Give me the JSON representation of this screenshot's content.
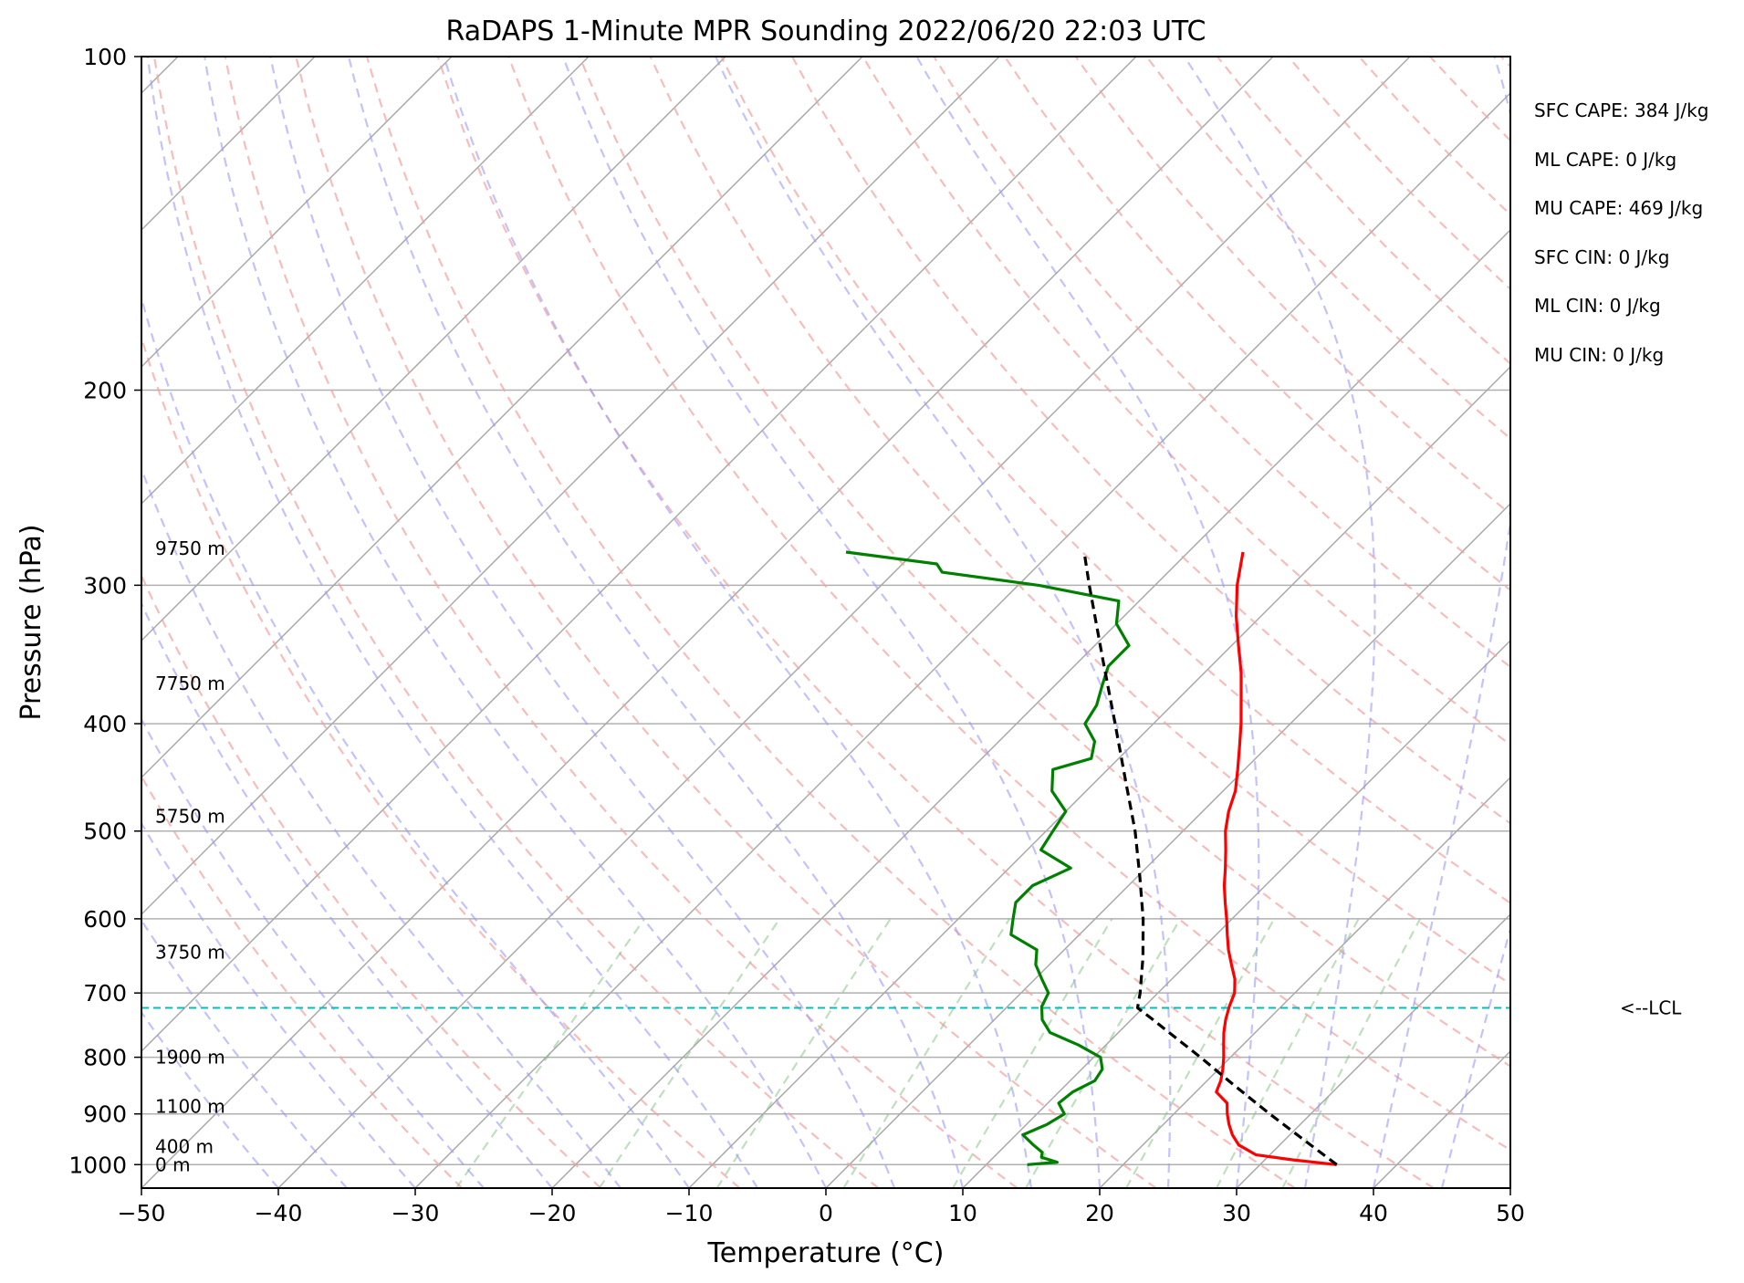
{
  "chart_data": {
    "type": "line",
    "title": "RaDAPS 1-Minute MPR Sounding 2022/06/20 22:03 UTC",
    "xlabel": "Temperature (°C)",
    "ylabel": "Pressure (hPa)",
    "xlim": [
      -50,
      50
    ],
    "ylim": [
      1050,
      100
    ],
    "y_scale": "log",
    "x_ticks": [
      "−50",
      "−40",
      "−30",
      "−20",
      "−10",
      "0",
      "10",
      "20",
      "30",
      "40",
      "50"
    ],
    "y_ticks": [
      "100",
      "200",
      "300",
      "400",
      "500",
      "600",
      "700",
      "800",
      "900",
      "1000"
    ],
    "grid": true,
    "skew": true,
    "stats": [
      "SFC CAPE: 384 J/kg",
      "ML CAPE: 0 J/kg",
      "MU CAPE: 469 J/kg",
      "SFC CIN: 0 J/kg",
      "ML CIN: 0 J/kg",
      "MU CIN: 0 J/kg"
    ],
    "lcl_label": "<--LCL",
    "lcl_pressure": 722,
    "height_labels": [
      {
        "text": "9750 m",
        "p": 278
      },
      {
        "text": "7750 m",
        "p": 368
      },
      {
        "text": "5750 m",
        "p": 485
      },
      {
        "text": "3750 m",
        "p": 643
      },
      {
        "text": "1900 m",
        "p": 800
      },
      {
        "text": "1100 m",
        "p": 886
      },
      {
        "text": "400 m",
        "p": 963
      },
      {
        "text": "0 m",
        "p": 1000
      }
    ],
    "series": [
      {
        "role": "temperature",
        "color": "#ff0000",
        "p": [
          1000,
          990,
          980,
          960,
          940,
          920,
          900,
          880,
          870,
          860,
          840,
          820,
          800,
          780,
          760,
          740,
          720,
          700,
          680,
          660,
          640,
          620,
          600,
          580,
          560,
          540,
          520,
          500,
          480,
          460,
          440,
          420,
          400,
          380,
          360,
          340,
          320,
          300,
          280
        ],
        "t": [
          35.6,
          32.0,
          29.0,
          27.0,
          25.8,
          24.8,
          23.9,
          23.1,
          22.3,
          21.5,
          21.0,
          20.3,
          19.5,
          18.6,
          17.7,
          16.9,
          16.2,
          15.6,
          14.6,
          13.3,
          12.0,
          10.8,
          9.6,
          8.3,
          7.0,
          5.8,
          4.5,
          3.1,
          1.9,
          0.9,
          -0.5,
          -2.0,
          -3.6,
          -5.4,
          -7.3,
          -9.5,
          -11.8,
          -14.0,
          -16.0
        ]
      },
      {
        "role": "dewpoint",
        "color": "#008000",
        "p": [
          1000,
          995,
          985,
          975,
          960,
          940,
          920,
          900,
          880,
          860,
          840,
          820,
          800,
          780,
          760,
          740,
          720,
          700,
          680,
          660,
          640,
          620,
          600,
          580,
          560,
          540,
          520,
          500,
          480,
          460,
          440,
          430,
          415,
          400,
          385,
          370,
          355,
          340,
          325,
          310,
          300,
          292,
          287,
          280
        ],
        "t": [
          13.0,
          15.0,
          13.5,
          13.2,
          12.0,
          10.5,
          11.5,
          12.0,
          10.8,
          11.0,
          11.8,
          11.5,
          10.5,
          8.0,
          5.0,
          3.5,
          2.5,
          2.0,
          0.5,
          -1.0,
          -2.0,
          -5.0,
          -6.0,
          -7.0,
          -7.0,
          -5.5,
          -9.0,
          -9.5,
          -10.0,
          -12.5,
          -14.0,
          -12.0,
          -13.0,
          -15.0,
          -15.5,
          -16.5,
          -17.5,
          -17.5,
          -20.0,
          -21.5,
          -28.5,
          -36.5,
          -37.5,
          -45.0
        ]
      },
      {
        "role": "parcel",
        "color": "#000000",
        "dashed": true,
        "p": [
          1000,
          950,
          900,
          850,
          800,
          760,
          740,
          722,
          700,
          650,
          600,
          550,
          500,
          450,
          400,
          350,
          300,
          280
        ],
        "t": [
          35.6,
          31.4,
          27.0,
          22.5,
          17.8,
          13.7,
          11.6,
          9.6,
          8.7,
          6.3,
          3.5,
          0.2,
          -3.5,
          -7.9,
          -12.8,
          -18.4,
          -24.8,
          -27.6
        ]
      }
    ]
  }
}
